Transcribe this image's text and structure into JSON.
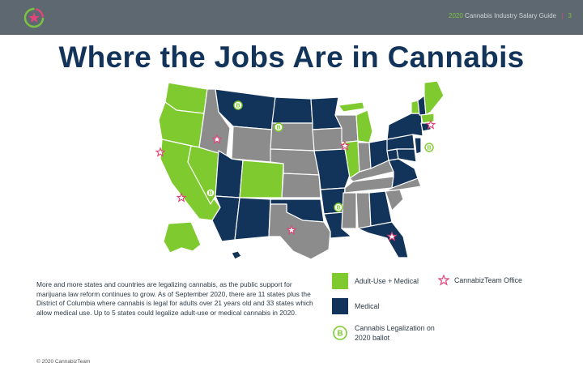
{
  "header": {
    "guide_year": "2020",
    "guide_title": "Cannabis Industry Salary Guide",
    "page_number": "3"
  },
  "title": "Where the Jobs  Are in Cannabis",
  "description": "More and more states and countries are legalizing cannabis, as the public support for marijuana law reform continues to grow. As of September 2020, there are 11 states plus the District of Columbia where cannabis is legal for adults over 21 years old and 33 states which allow medical use. Up to 5 states could legalize adult-use or medical cannabis in 2020.",
  "legend": {
    "adult_use": "Adult-Use + Medical",
    "medical": "Medical",
    "ballot": "Cannabis Legalization on 2020 ballot",
    "office": "CannabizTeam Office"
  },
  "ballot_marker": "B",
  "colors": {
    "adult_use": "#7fcb2f",
    "medical": "#13345a",
    "none": "#8c8c8c",
    "office": "#e0457b",
    "header": "#5d6870"
  },
  "footer": "© 2020 CannabizTeam"
}
